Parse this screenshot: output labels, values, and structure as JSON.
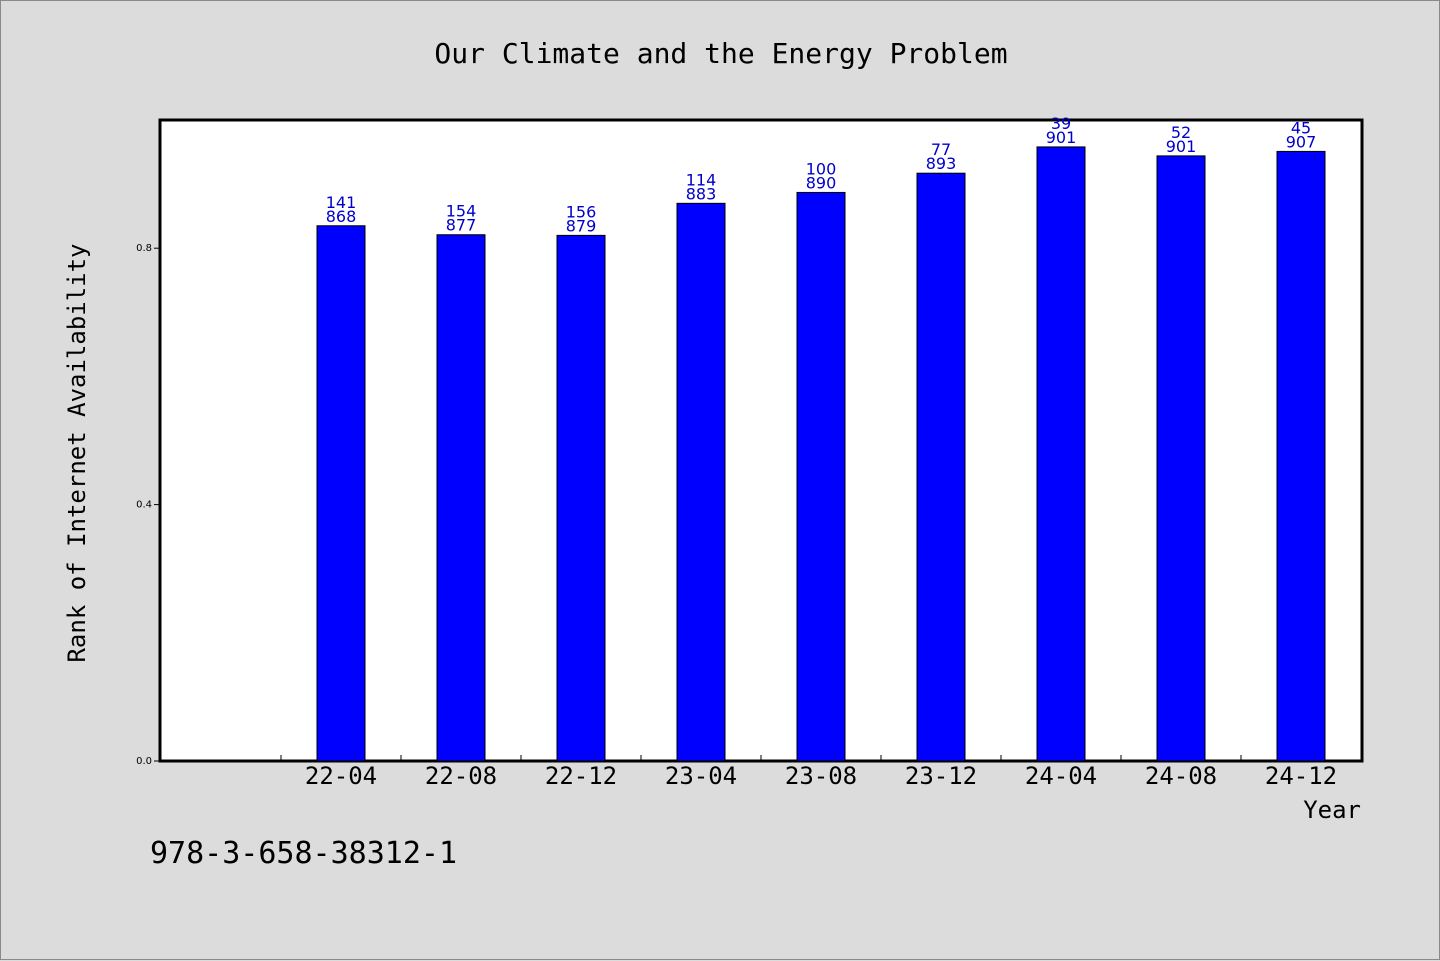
{
  "chart_data": {
    "type": "bar",
    "title": "Our Climate and the Energy Problem",
    "xlabel": "Year",
    "ylabel": "Rank of Internet Availability",
    "categories": [
      "22-04",
      "22-08",
      "22-12",
      "23-04",
      "23-08",
      "23-12",
      "24-04",
      "24-08",
      "24-12"
    ],
    "series": [
      {
        "values": [
          0.835,
          0.821,
          0.82,
          0.87,
          0.887,
          0.917,
          0.958,
          0.944,
          0.951
        ],
        "label_top": [
          "141",
          "154",
          "156",
          "114",
          "100",
          "77",
          "39",
          "52",
          "45"
        ],
        "label_bottom": [
          "868",
          "877",
          "879",
          "883",
          "890",
          "893",
          "901",
          "901",
          "907"
        ],
        "color": "#0000ff"
      }
    ],
    "yticks": [
      "0.0",
      "0.4",
      "0.8"
    ],
    "ylim": [
      0,
      1.0
    ],
    "grid": false,
    "footer_code": "978-3-658-38312-1",
    "colors": {
      "background": "#dcdcdc",
      "plot_background": "#ffffff",
      "bar": "#0000ff",
      "data_label": "#0000cc"
    }
  }
}
